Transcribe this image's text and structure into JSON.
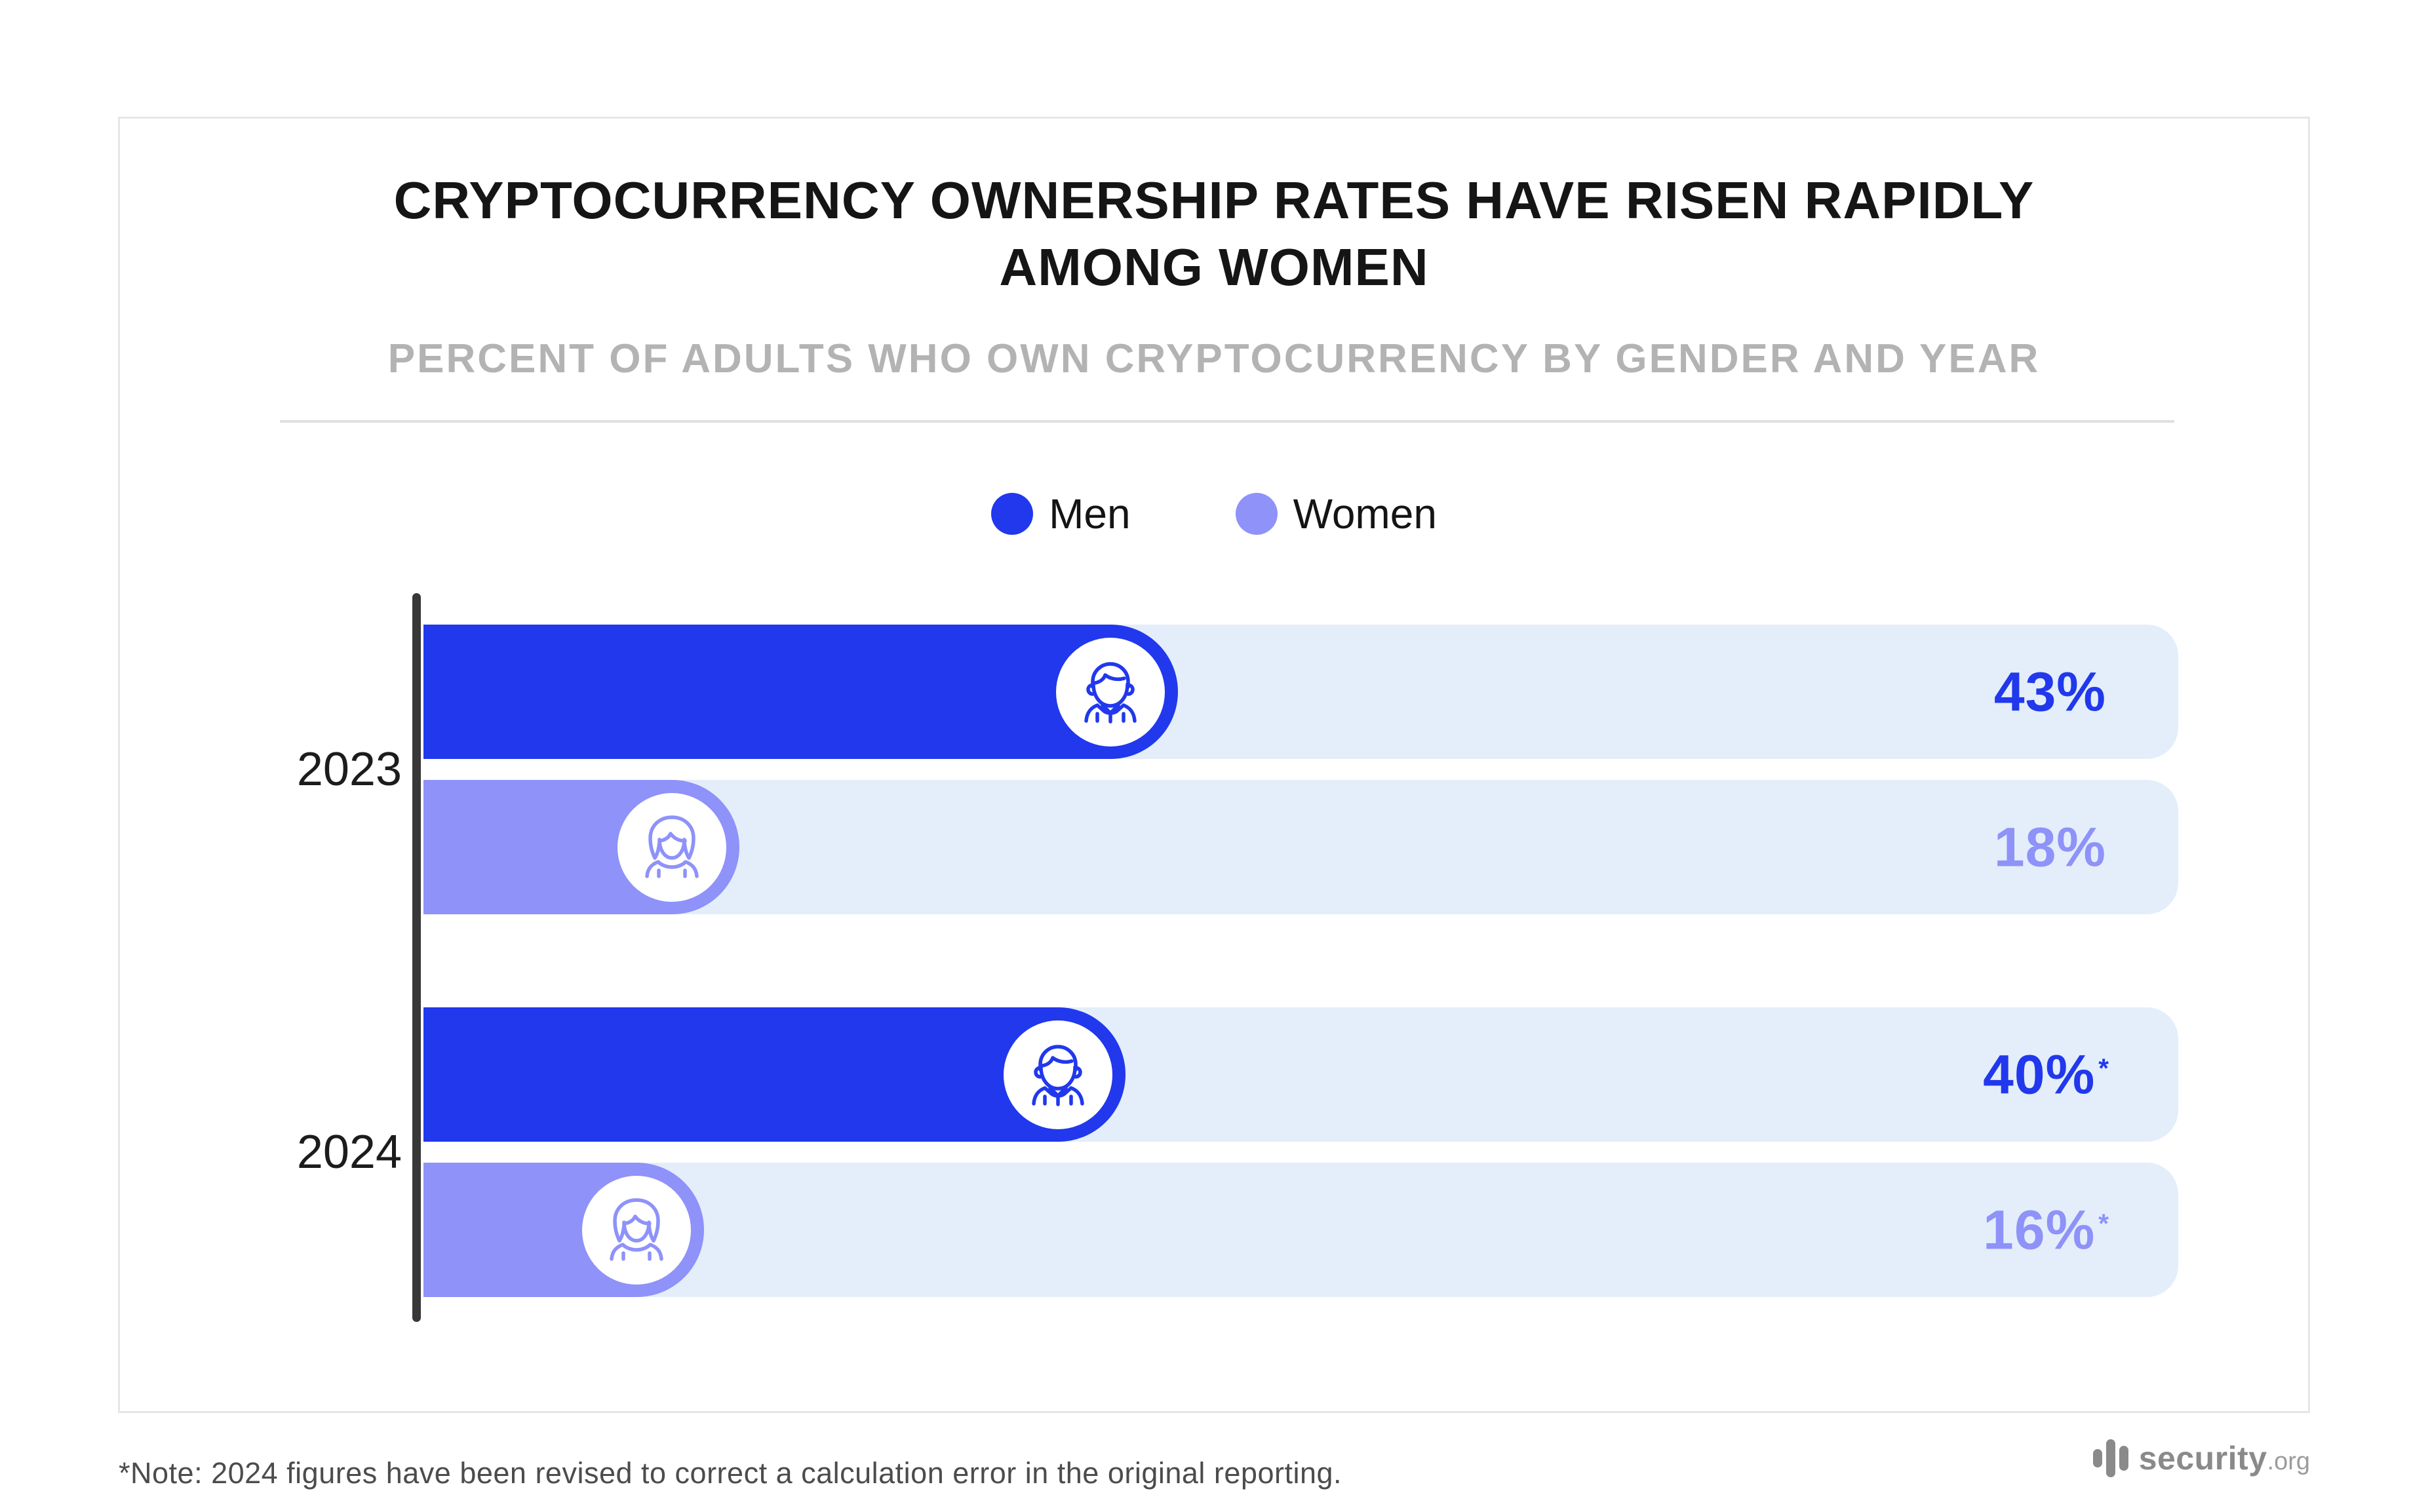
{
  "header": {
    "title_line1": "CRYPTOCURRENCY OWNERSHIP RATES HAVE RISEN RAPIDLY",
    "title_line2": "AMONG WOMEN",
    "subtitle": "PERCENT OF ADULTS WHO OWN CRYPTOCURRENCY BY GENDER AND YEAR"
  },
  "legend": {
    "items": [
      {
        "label": "Men",
        "color": "#2138ed"
      },
      {
        "label": "Women",
        "color": "#8e92f9"
      }
    ]
  },
  "years": [
    "2023",
    "2024"
  ],
  "bars": [
    {
      "year": "2023",
      "series": "Men",
      "value": 43,
      "label": "43%",
      "sup": "",
      "icon": "man-icon"
    },
    {
      "year": "2023",
      "series": "Women",
      "value": 18,
      "label": "18%",
      "sup": "",
      "icon": "woman-icon"
    },
    {
      "year": "2024",
      "series": "Men",
      "value": 40,
      "label": "40%",
      "sup": "*",
      "icon": "man-icon"
    },
    {
      "year": "2024",
      "series": "Women",
      "value": 16,
      "label": "16%",
      "sup": "*",
      "icon": "woman-icon"
    }
  ],
  "chart_data": {
    "type": "bar",
    "orientation": "horizontal",
    "title": "CRYPTOCURRENCY OWNERSHIP RATES HAVE RISEN RAPIDLY AMONG WOMEN",
    "subtitle": "PERCENT OF ADULTS WHO OWN CRYPTOCURRENCY BY GENDER AND YEAR",
    "categories": [
      "2023",
      "2024"
    ],
    "series": [
      {
        "name": "Men",
        "color": "#2138ed",
        "values": [
          43,
          40
        ]
      },
      {
        "name": "Women",
        "color": "#8e92f9",
        "values": [
          18,
          16
        ]
      }
    ],
    "value_labels": [
      [
        "43%",
        "18%"
      ],
      [
        "40%*",
        "16%*"
      ]
    ],
    "xlim": [
      0,
      100
    ],
    "grid": false,
    "legend_position": "top-center",
    "track_color": "#e3eefa",
    "annotation": "*Note: 2024 figures have been revised to correct a calculation error in the original reporting."
  },
  "colors": {
    "men": "#2138ed",
    "women": "#8e92f9",
    "track": "#e3eefa",
    "axis": "#383838",
    "divider": "#e0e0e0",
    "title": "#151515",
    "subtitle": "#b3b3b3",
    "note": "#4c4c4c",
    "logo": "#8a8a8a"
  },
  "footer": {
    "note": "*Note: 2024 figures have been revised to correct a calculation error in the original reporting."
  },
  "logo": {
    "text": "security",
    "tld": ".org"
  }
}
